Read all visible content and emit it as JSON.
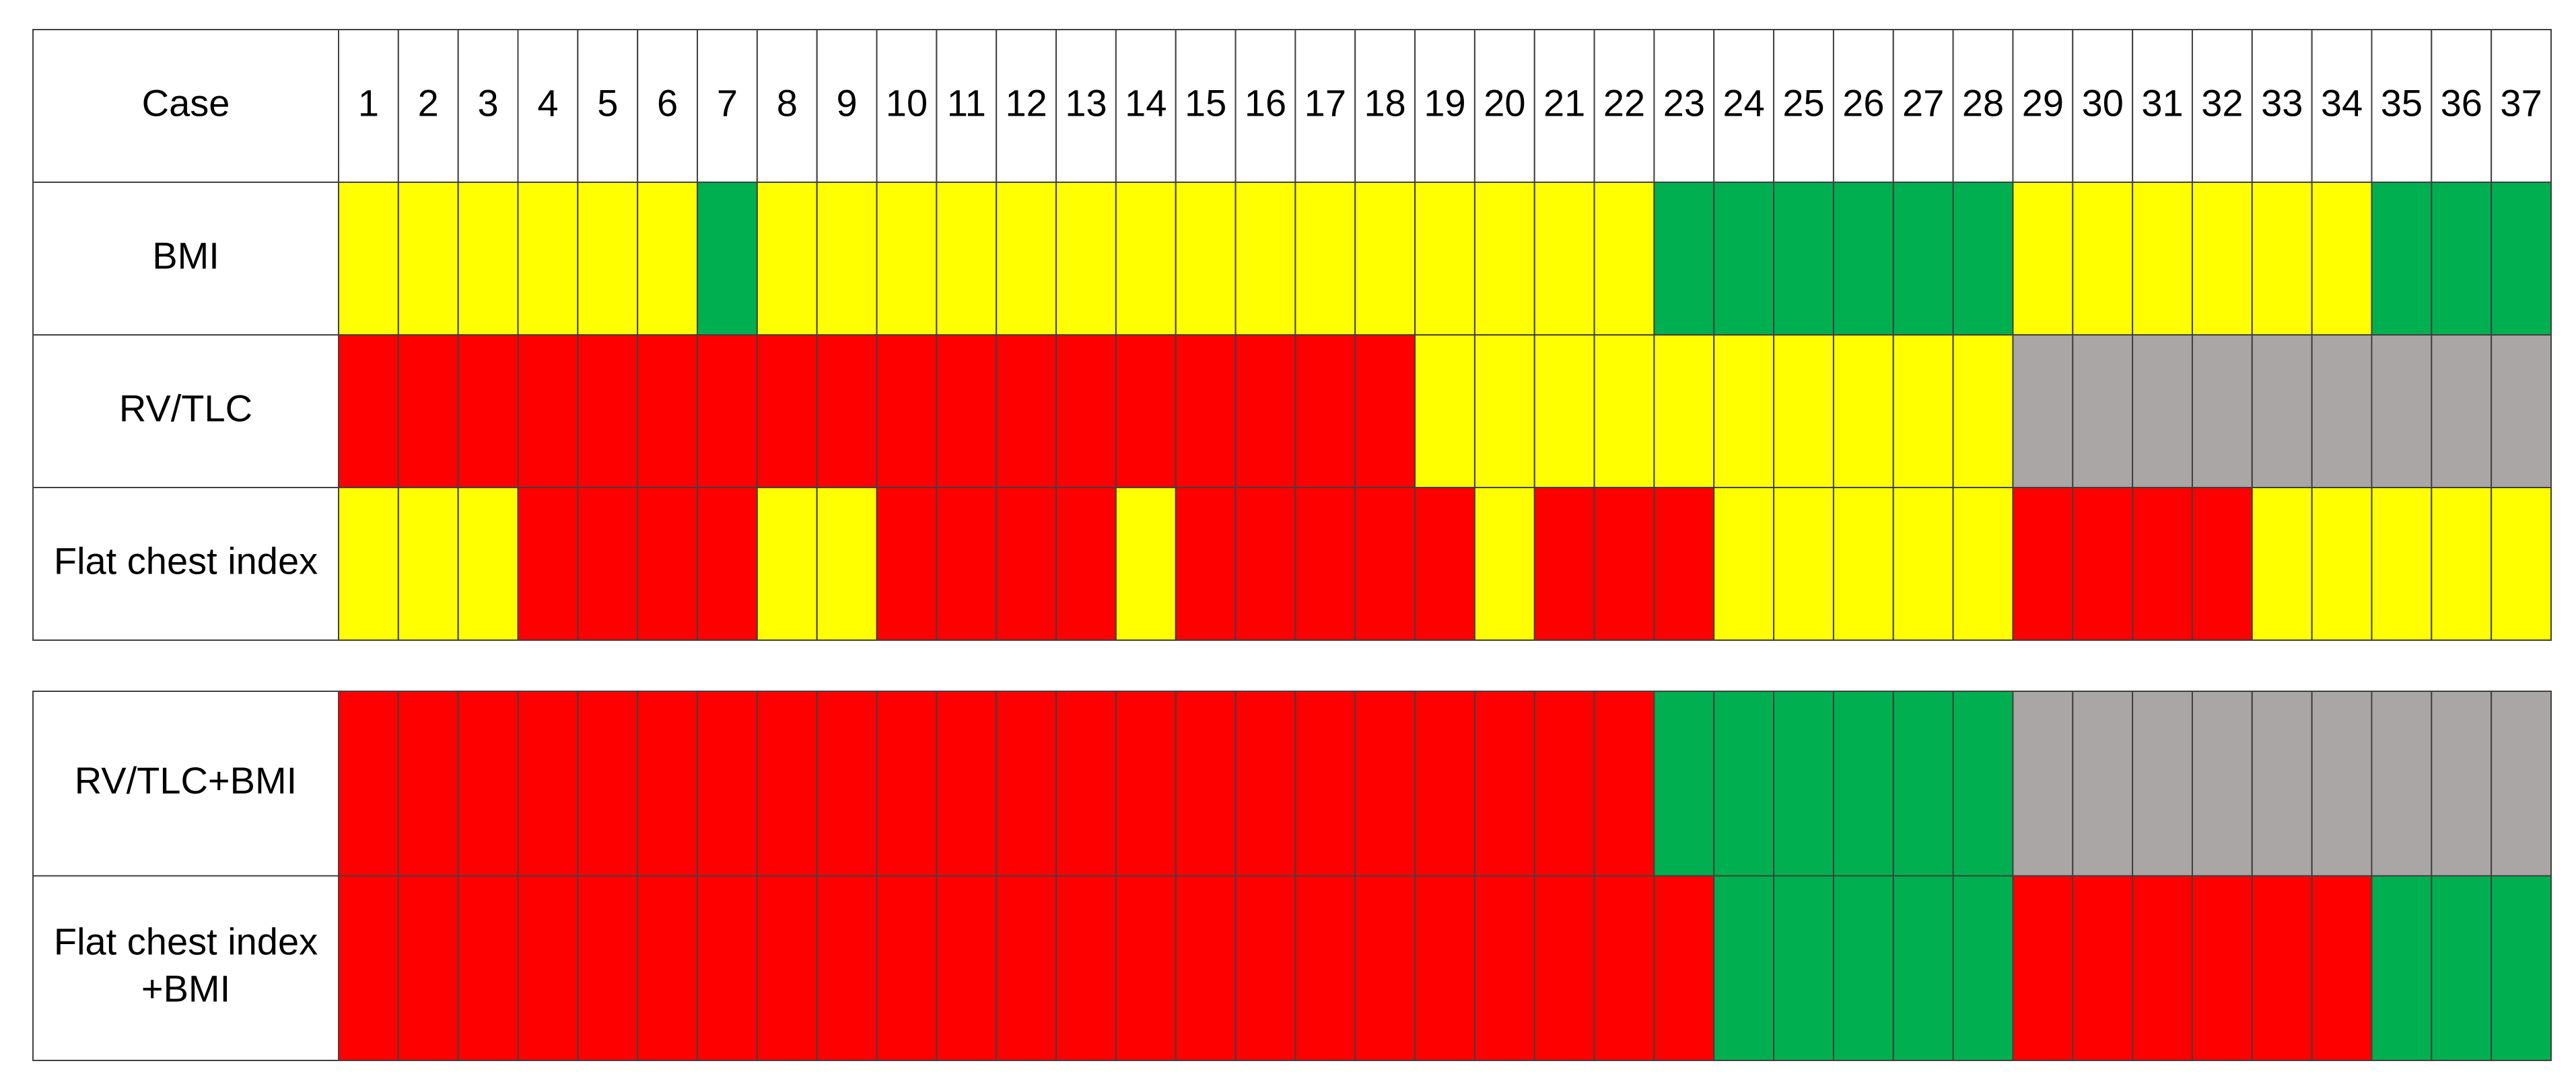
{
  "header": {
    "label": "Case",
    "cases": [
      1,
      2,
      3,
      4,
      5,
      6,
      7,
      8,
      9,
      10,
      11,
      12,
      13,
      14,
      15,
      16,
      17,
      18,
      19,
      20,
      21,
      22,
      23,
      24,
      25,
      26,
      27,
      28,
      29,
      30,
      31,
      32,
      33,
      34,
      35,
      36,
      37
    ]
  },
  "tables": [
    {
      "rows": [
        {
          "label": [
            "BMI"
          ],
          "cells": [
            "#ffff00",
            "#ffff00",
            "#ffff00",
            "#ffff00",
            "#ffff00",
            "#ffff00",
            "#00b050",
            "#ffff00",
            "#ffff00",
            "#ffff00",
            "#ffff00",
            "#ffff00",
            "#ffff00",
            "#ffff00",
            "#ffff00",
            "#ffff00",
            "#ffff00",
            "#ffff00",
            "#ffff00",
            "#ffff00",
            "#ffff00",
            "#ffff00",
            "#00b050",
            "#00b050",
            "#00b050",
            "#00b050",
            "#00b050",
            "#00b050",
            "#ffff00",
            "#ffff00",
            "#ffff00",
            "#ffff00",
            "#ffff00",
            "#ffff00",
            "#00b050",
            "#00b050",
            "#00b050"
          ]
        },
        {
          "label": [
            "RV/TLC"
          ],
          "cells": [
            "#ff0000",
            "#ff0000",
            "#ff0000",
            "#ff0000",
            "#ff0000",
            "#ff0000",
            "#ff0000",
            "#ff0000",
            "#ff0000",
            "#ff0000",
            "#ff0000",
            "#ff0000",
            "#ff0000",
            "#ff0000",
            "#ff0000",
            "#ff0000",
            "#ff0000",
            "#ff0000",
            "#ffff00",
            "#ffff00",
            "#ffff00",
            "#ffff00",
            "#ffff00",
            "#ffff00",
            "#ffff00",
            "#ffff00",
            "#ffff00",
            "#ffff00",
            "#aaa6a6",
            "#aaa6a6",
            "#aaa6a6",
            "#aaa6a6",
            "#aaa6a6",
            "#aaa6a6",
            "#aaa6a6",
            "#aaa6a6",
            "#aaa6a6"
          ]
        },
        {
          "label": [
            "Flat chest index"
          ],
          "cells": [
            "#ffff00",
            "#ffff00",
            "#ffff00",
            "#ff0000",
            "#ff0000",
            "#ff0000",
            "#ff0000",
            "#ffff00",
            "#ffff00",
            "#ff0000",
            "#ff0000",
            "#ff0000",
            "#ff0000",
            "#ffff00",
            "#ff0000",
            "#ff0000",
            "#ff0000",
            "#ff0000",
            "#ff0000",
            "#ffff00",
            "#ff0000",
            "#ff0000",
            "#ff0000",
            "#ffff00",
            "#ffff00",
            "#ffff00",
            "#ffff00",
            "#ffff00",
            "#ff0000",
            "#ff0000",
            "#ff0000",
            "#ff0000",
            "#ffff00",
            "#ffff00",
            "#ffff00",
            "#ffff00",
            "#ffff00"
          ]
        }
      ]
    },
    {
      "rows": [
        {
          "label": [
            "RV/TLC+BMI"
          ],
          "cells": [
            "#ff0000",
            "#ff0000",
            "#ff0000",
            "#ff0000",
            "#ff0000",
            "#ff0000",
            "#ff0000",
            "#ff0000",
            "#ff0000",
            "#ff0000",
            "#ff0000",
            "#ff0000",
            "#ff0000",
            "#ff0000",
            "#ff0000",
            "#ff0000",
            "#ff0000",
            "#ff0000",
            "#ff0000",
            "#ff0000",
            "#ff0000",
            "#ff0000",
            "#00b050",
            "#00b050",
            "#00b050",
            "#00b050",
            "#00b050",
            "#00b050",
            "#aaa6a6",
            "#aaa6a6",
            "#aaa6a6",
            "#aaa6a6",
            "#aaa6a6",
            "#aaa6a6",
            "#aaa6a6",
            "#aaa6a6",
            "#aaa6a6"
          ]
        },
        {
          "label": [
            "Flat chest index",
            "+BMI"
          ],
          "cells": [
            "#ff0000",
            "#ff0000",
            "#ff0000",
            "#ff0000",
            "#ff0000",
            "#ff0000",
            "#ff0000",
            "#ff0000",
            "#ff0000",
            "#ff0000",
            "#ff0000",
            "#ff0000",
            "#ff0000",
            "#ff0000",
            "#ff0000",
            "#ff0000",
            "#ff0000",
            "#ff0000",
            "#ff0000",
            "#ff0000",
            "#ff0000",
            "#ff0000",
            "#ff0000",
            "#00b050",
            "#00b050",
            "#00b050",
            "#00b050",
            "#00b050",
            "#ff0000",
            "#ff0000",
            "#ff0000",
            "#ff0000",
            "#ff0000",
            "#ff0000",
            "#00b050",
            "#00b050",
            "#00b050"
          ]
        }
      ]
    }
  ]
}
